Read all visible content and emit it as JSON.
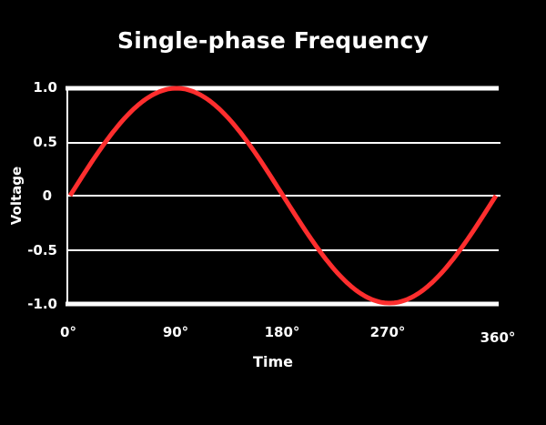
{
  "chart_data": {
    "type": "line",
    "title": "Single-phase Frequency",
    "xlabel": "Time",
    "ylabel": "Voltage",
    "x_tick_labels": [
      "0°",
      "90°",
      "180°",
      "270°",
      "360°"
    ],
    "y_tick_labels": [
      "1.0",
      "0.5",
      "0",
      "-0.5",
      "-1.0"
    ],
    "ylim": [
      -1.0,
      1.0
    ],
    "xlim": [
      0,
      360
    ],
    "grid": true,
    "legend": null,
    "series": [
      {
        "name": "Voltage",
        "color": "#ff2e2e",
        "x": [
          0,
          30,
          60,
          90,
          120,
          150,
          180,
          210,
          240,
          270,
          300,
          330,
          360
        ],
        "values": [
          0,
          0.5,
          0.87,
          1.0,
          0.87,
          0.5,
          0,
          -0.5,
          -0.87,
          -1.0,
          -0.87,
          -0.5,
          0
        ]
      }
    ]
  },
  "colors": {
    "background": "#000000",
    "axis": "#ffffff",
    "curve": "#ff2e2e"
  }
}
